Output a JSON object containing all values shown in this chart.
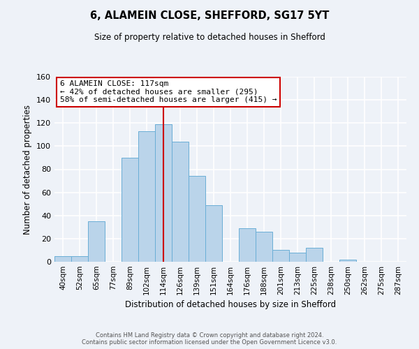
{
  "title": "6, ALAMEIN CLOSE, SHEFFORD, SG17 5YT",
  "subtitle": "Size of property relative to detached houses in Shefford",
  "xlabel": "Distribution of detached houses by size in Shefford",
  "ylabel": "Number of detached properties",
  "bin_labels": [
    "40sqm",
    "52sqm",
    "65sqm",
    "77sqm",
    "89sqm",
    "102sqm",
    "114sqm",
    "126sqm",
    "139sqm",
    "151sqm",
    "164sqm",
    "176sqm",
    "188sqm",
    "201sqm",
    "213sqm",
    "225sqm",
    "238sqm",
    "250sqm",
    "262sqm",
    "275sqm",
    "287sqm"
  ],
  "bar_heights": [
    5,
    5,
    35,
    0,
    90,
    113,
    119,
    104,
    74,
    49,
    0,
    29,
    26,
    10,
    8,
    12,
    0,
    2,
    0,
    0,
    0
  ],
  "bar_color": "#bad4ea",
  "bar_edge_color": "#6aaed6",
  "ylim": [
    0,
    160
  ],
  "yticks": [
    0,
    20,
    40,
    60,
    80,
    100,
    120,
    140,
    160
  ],
  "vline_x_index": 6,
  "vline_color": "#cc0000",
  "annotation_title": "6 ALAMEIN CLOSE: 117sqm",
  "annotation_line1": "← 42% of detached houses are smaller (295)",
  "annotation_line2": "58% of semi-detached houses are larger (415) →",
  "annotation_box_color": "#ffffff",
  "annotation_box_edge": "#cc0000",
  "footer_line1": "Contains HM Land Registry data © Crown copyright and database right 2024.",
  "footer_line2": "Contains public sector information licensed under the Open Government Licence v3.0.",
  "background_color": "#eef2f8",
  "grid_color": "#ffffff"
}
